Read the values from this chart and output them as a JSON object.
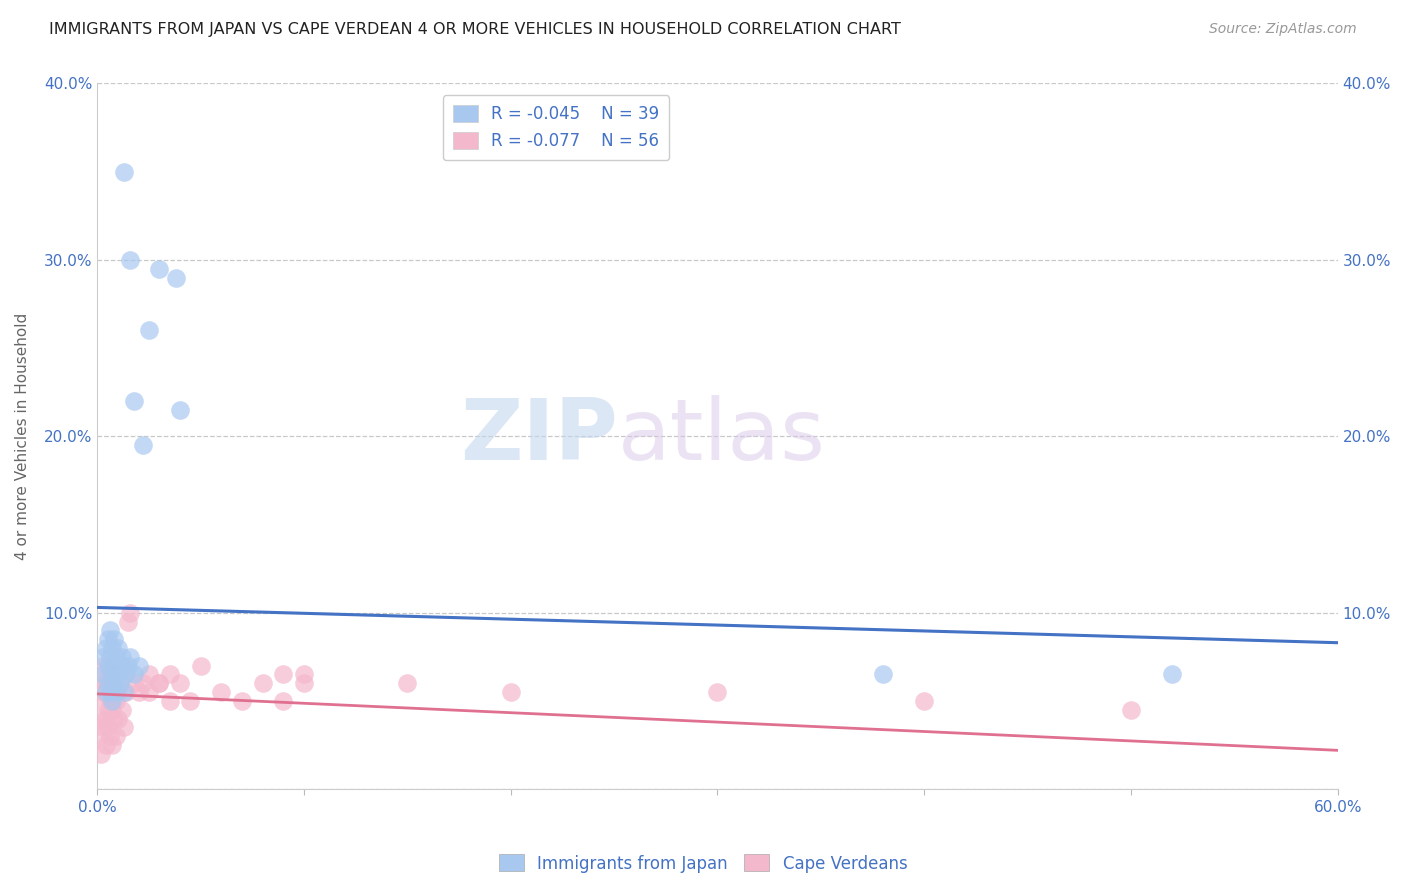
{
  "title": "IMMIGRANTS FROM JAPAN VS CAPE VERDEAN 4 OR MORE VEHICLES IN HOUSEHOLD CORRELATION CHART",
  "source": "Source: ZipAtlas.com",
  "ylabel": "4 or more Vehicles in Household",
  "xlim": [
    0.0,
    0.6
  ],
  "ylim": [
    0.0,
    0.4
  ],
  "xticks": [
    0.0,
    0.1,
    0.2,
    0.3,
    0.4,
    0.5,
    0.6
  ],
  "xticklabels": [
    "0.0%",
    "",
    "",
    "",
    "",
    "",
    "60.0%"
  ],
  "yticks_left": [
    0.0,
    0.1,
    0.2,
    0.3,
    0.4
  ],
  "yticklabels_left": [
    "",
    "10.0%",
    "20.0%",
    "30.0%",
    "40.0%"
  ],
  "yticks_right": [
    0.0,
    0.1,
    0.2,
    0.3,
    0.4
  ],
  "yticklabels_right": [
    "",
    "10.0%",
    "20.0%",
    "30.0%",
    "40.0%"
  ],
  "legend_R_japan": "R = -0.045",
  "legend_N_japan": "N = 39",
  "legend_R_cape": "R = -0.077",
  "legend_N_cape": "N = 56",
  "japan_color": "#a8c8f0",
  "cape_color": "#f4b8cc",
  "japan_trend_color": "#4472c4",
  "cape_trend_color": "#e07090",
  "watermark_zip": "ZIP",
  "watermark_atlas": "atlas",
  "background_color": "#ffffff",
  "grid_color": "#c8c8c8",
  "axis_label_color": "#4472c4",
  "tick_label_color": "#4472c4",
  "japan_x": [
    0.003,
    0.003,
    0.004,
    0.004,
    0.005,
    0.005,
    0.005,
    0.006,
    0.006,
    0.006,
    0.007,
    0.007,
    0.007,
    0.008,
    0.008,
    0.008,
    0.009,
    0.009,
    0.01,
    0.01,
    0.011,
    0.012,
    0.012,
    0.013,
    0.014,
    0.015,
    0.016,
    0.018,
    0.02,
    0.022,
    0.025,
    0.03,
    0.038,
    0.04,
    0.38,
    0.52,
    0.013,
    0.016,
    0.018
  ],
  "japan_y": [
    0.075,
    0.065,
    0.08,
    0.055,
    0.07,
    0.06,
    0.085,
    0.075,
    0.055,
    0.09,
    0.065,
    0.08,
    0.05,
    0.07,
    0.06,
    0.085,
    0.075,
    0.055,
    0.065,
    0.08,
    0.06,
    0.07,
    0.075,
    0.055,
    0.065,
    0.07,
    0.075,
    0.065,
    0.07,
    0.195,
    0.26,
    0.295,
    0.29,
    0.215,
    0.065,
    0.065,
    0.35,
    0.3,
    0.22
  ],
  "cape_x": [
    0.001,
    0.001,
    0.002,
    0.002,
    0.002,
    0.003,
    0.003,
    0.003,
    0.004,
    0.004,
    0.004,
    0.005,
    0.005,
    0.005,
    0.006,
    0.006,
    0.006,
    0.007,
    0.007,
    0.007,
    0.008,
    0.008,
    0.009,
    0.009,
    0.01,
    0.01,
    0.011,
    0.012,
    0.013,
    0.014,
    0.015,
    0.016,
    0.018,
    0.02,
    0.022,
    0.025,
    0.03,
    0.035,
    0.04,
    0.045,
    0.05,
    0.06,
    0.07,
    0.08,
    0.09,
    0.1,
    0.15,
    0.2,
    0.3,
    0.4,
    0.5,
    0.025,
    0.03,
    0.035,
    0.1,
    0.09
  ],
  "cape_y": [
    0.03,
    0.05,
    0.04,
    0.06,
    0.02,
    0.035,
    0.055,
    0.07,
    0.04,
    0.06,
    0.025,
    0.045,
    0.065,
    0.035,
    0.05,
    0.07,
    0.03,
    0.045,
    0.06,
    0.025,
    0.04,
    0.065,
    0.05,
    0.03,
    0.055,
    0.04,
    0.06,
    0.045,
    0.035,
    0.055,
    0.095,
    0.1,
    0.06,
    0.055,
    0.06,
    0.055,
    0.06,
    0.05,
    0.06,
    0.05,
    0.07,
    0.055,
    0.05,
    0.06,
    0.05,
    0.065,
    0.06,
    0.055,
    0.055,
    0.05,
    0.045,
    0.065,
    0.06,
    0.065,
    0.06,
    0.065
  ],
  "japan_trend_x": [
    0.0,
    0.6
  ],
  "japan_trend_y": [
    0.103,
    0.083
  ],
  "cape_trend_x": [
    0.0,
    0.6
  ],
  "cape_trend_y": [
    0.054,
    0.022
  ]
}
